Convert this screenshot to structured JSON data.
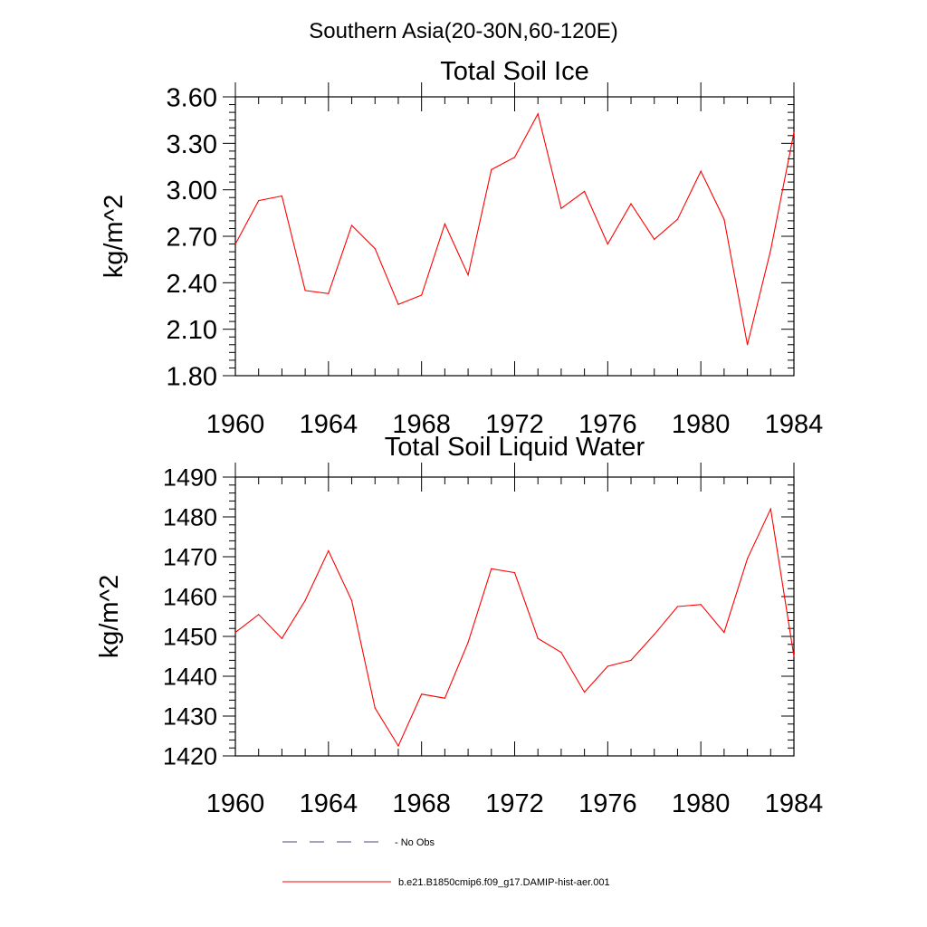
{
  "figure": {
    "title": "Southern Asia(20-30N,60-120E)"
  },
  "chart_data": [
    {
      "type": "line",
      "title": "Total Soil Ice",
      "xlabel": "",
      "ylabel": "kg/m^2",
      "xlim": [
        1960,
        1984
      ],
      "ylim": [
        1.8,
        3.6
      ],
      "x_ticks": [
        "1960",
        "1964",
        "1968",
        "1972",
        "1976",
        "1980",
        "1984"
      ],
      "y_ticks": [
        "1.80",
        "2.10",
        "2.40",
        "2.70",
        "3.00",
        "3.30",
        "3.60"
      ],
      "grid": false,
      "series": [
        {
          "name": "b.e21.B1850cmip6.f09_g17.DAMIP-hist-aer.001",
          "color": "#ff0000",
          "x": [
            1960,
            1961,
            1962,
            1963,
            1964,
            1965,
            1966,
            1967,
            1968,
            1969,
            1970,
            1971,
            1972,
            1973,
            1974,
            1975,
            1976,
            1977,
            1978,
            1979,
            1980,
            1981,
            1982,
            1983,
            1984
          ],
          "y": [
            2.65,
            2.93,
            2.96,
            2.35,
            2.33,
            2.77,
            2.62,
            2.26,
            2.32,
            2.78,
            2.45,
            3.13,
            3.21,
            3.49,
            2.88,
            2.99,
            2.65,
            2.91,
            2.68,
            2.81,
            3.12,
            2.81,
            2.0,
            2.61,
            3.37
          ]
        }
      ]
    },
    {
      "type": "line",
      "title": "Total Soil Liquid Water",
      "xlabel": "",
      "ylabel": "kg/m^2",
      "xlim": [
        1960,
        1984
      ],
      "ylim": [
        1420,
        1490
      ],
      "x_ticks": [
        "1960",
        "1964",
        "1968",
        "1972",
        "1976",
        "1980",
        "1984"
      ],
      "y_ticks": [
        "1420",
        "1430",
        "1440",
        "1450",
        "1460",
        "1470",
        "1480",
        "1490"
      ],
      "grid": false,
      "series": [
        {
          "name": "b.e21.B1850cmip6.f09_g17.DAMIP-hist-aer.001",
          "color": "#ff0000",
          "x": [
            1960,
            1961,
            1962,
            1963,
            1964,
            1965,
            1966,
            1967,
            1968,
            1969,
            1970,
            1971,
            1972,
            1973,
            1974,
            1975,
            1976,
            1977,
            1978,
            1979,
            1980,
            1981,
            1982,
            1983,
            1984
          ],
          "y": [
            1451,
            1455.5,
            1449.5,
            1459,
            1471.5,
            1459,
            1432,
            1422.5,
            1435.5,
            1434.5,
            1448.5,
            1467,
            1466,
            1449.5,
            1446,
            1436,
            1442.5,
            1444,
            1450.5,
            1457.5,
            1458,
            1451,
            1469.5,
            1482,
            1445
          ]
        }
      ]
    }
  ],
  "legend": {
    "placement": "bottom-center",
    "items": [
      {
        "label": "No Obs",
        "style": "dashed",
        "color": "#4a4a7a"
      },
      {
        "label": "b.e21.B1850cmip6.f09_g17.DAMIP-hist-aer.001",
        "style": "solid",
        "color": "#ff0000"
      }
    ]
  }
}
